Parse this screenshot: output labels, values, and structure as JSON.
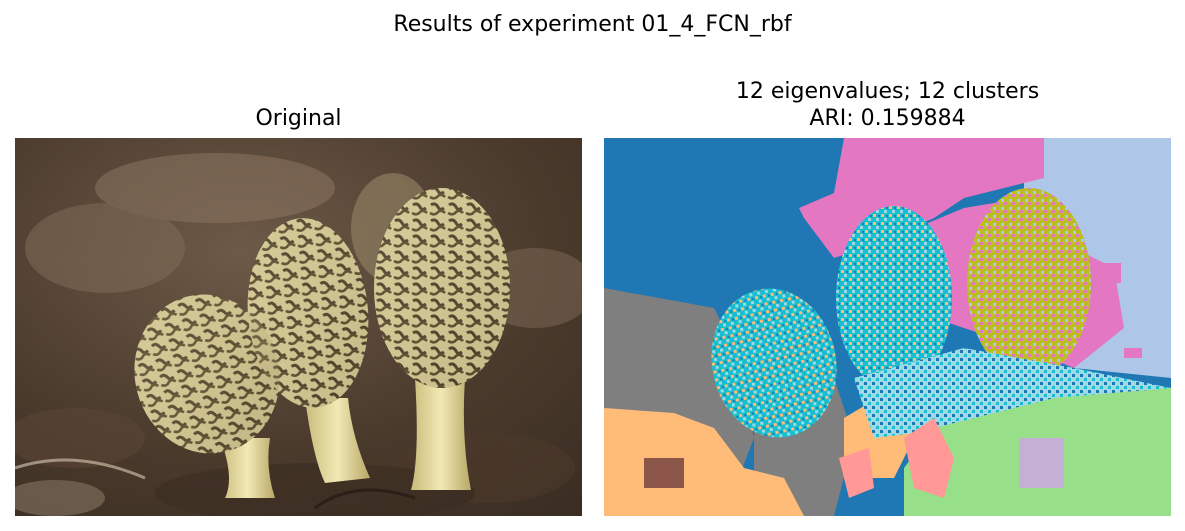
{
  "figure": {
    "suptitle": "Results of experiment 01_4_FCN_rbf"
  },
  "panels": {
    "original": {
      "title": "Original",
      "image_description_icon": "morel-mushrooms-photo"
    },
    "segmentation": {
      "title_line1": "12 eigenvalues; 12 clusters",
      "title_line2": "ARI: 0.159884"
    }
  },
  "colors": {
    "seg_blue": "#1f77b4",
    "seg_pink": "#e377c2",
    "seg_lightblue": "#aec7e8",
    "seg_gray": "#7f7f7f",
    "seg_orange": "#ffbb78",
    "seg_cyan": "#17becf",
    "seg_lightcyan": "#9edae5",
    "seg_olive": "#bcbd22",
    "seg_green": "#98df8a",
    "seg_salmon": "#ff9896",
    "seg_purple": "#c5b0d5",
    "seg_brown": "#8c564b"
  }
}
